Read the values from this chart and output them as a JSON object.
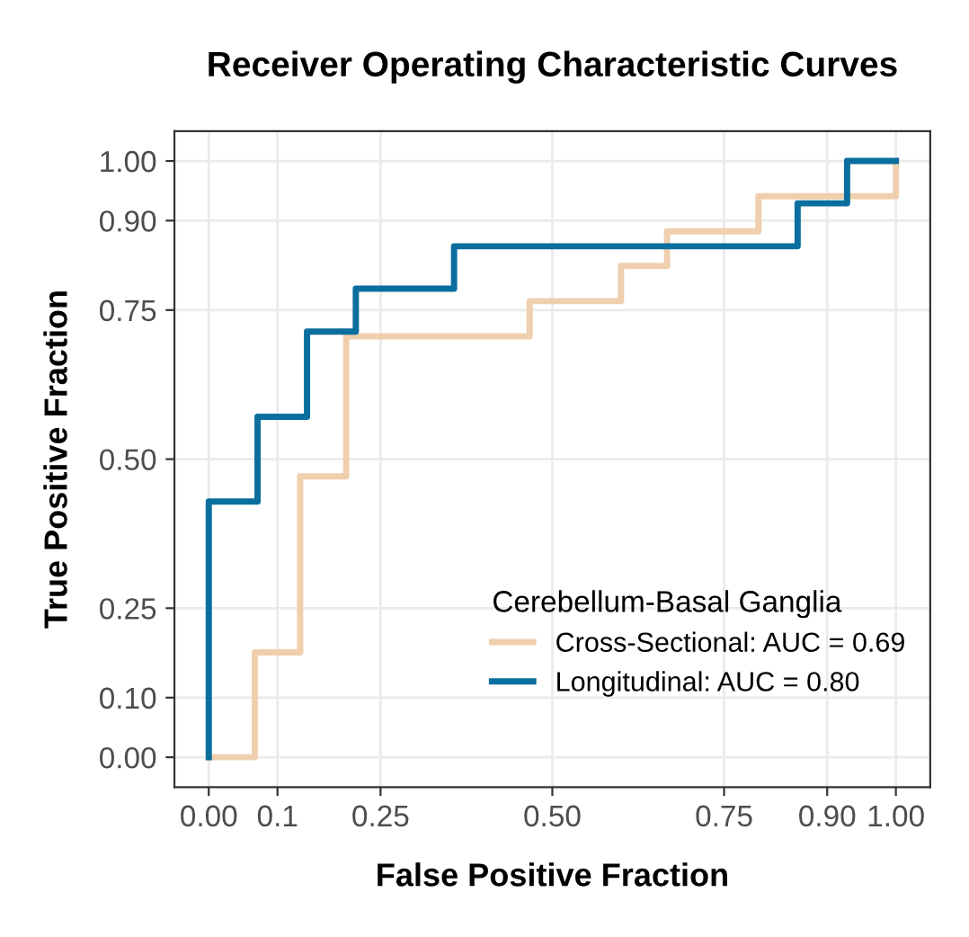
{
  "chart_data": {
    "type": "line",
    "title": "Receiver Operating Characteristic Curves",
    "xlabel": "False Positive Fraction",
    "ylabel": "True Positive Fraction",
    "legend_title": "Cerebellum-Basal Ganglia",
    "series": [
      {
        "name": "Cross-Sectional: AUC = 0.69",
        "color": "#f0cfae",
        "x": [
          0,
          0.067,
          0.067,
          0.133,
          0.133,
          0.2,
          0.2,
          0.467,
          0.467,
          0.6,
          0.6,
          0.667,
          0.667,
          0.8,
          0.8,
          1.0,
          1.0
        ],
        "values": [
          0,
          0,
          0.176,
          0.176,
          0.471,
          0.471,
          0.706,
          0.706,
          0.765,
          0.765,
          0.824,
          0.824,
          0.882,
          0.882,
          0.941,
          0.941,
          1.0
        ]
      },
      {
        "name": "Longitudinal: AUC = 0.80",
        "color": "#0a6e9e",
        "x": [
          0,
          0,
          0.071,
          0.071,
          0.143,
          0.143,
          0.214,
          0.214,
          0.357,
          0.357,
          0.857,
          0.857,
          0.929,
          0.929,
          1.0
        ],
        "values": [
          0,
          0.429,
          0.429,
          0.571,
          0.571,
          0.714,
          0.714,
          0.786,
          0.786,
          0.857,
          0.857,
          0.929,
          0.929,
          1.0,
          1.0
        ]
      }
    ],
    "xlim": [
      -0.05,
      1.05
    ],
    "ylim": [
      -0.05,
      1.05
    ],
    "xticks": [
      {
        "value": 0,
        "label": "0.00"
      },
      0.1,
      0.25,
      {
        "value": 0.5,
        "label": "0.50"
      },
      0.75,
      {
        "value": 0.9,
        "label": "0.90"
      },
      {
        "value": 1,
        "label": "1.00"
      }
    ],
    "yticks": [
      {
        "value": 0,
        "label": "0.00"
      },
      {
        "value": 0.1,
        "label": "0.10"
      },
      0.25,
      {
        "value": 0.5,
        "label": "0.50"
      },
      0.75,
      {
        "value": 0.9,
        "label": "0.90"
      },
      {
        "value": 1,
        "label": "1.00"
      }
    ],
    "grid": true,
    "legend": "bottom right",
    "line_style": "solid",
    "marker": "none"
  }
}
